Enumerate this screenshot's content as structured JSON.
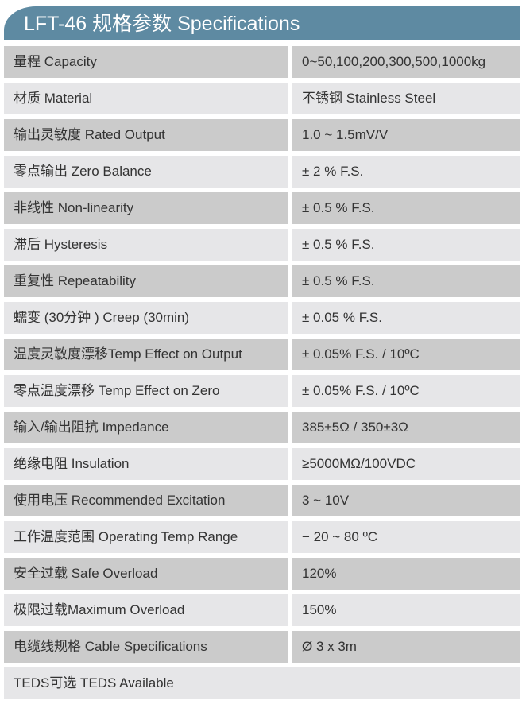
{
  "title": "LFT-46 规格参数 Specifications",
  "rows": [
    {
      "label": "量程 Capacity",
      "value": "0~50,100,200,300,500,1000kg"
    },
    {
      "label": "材质 Material",
      "value": "不锈钢 Stainless Steel"
    },
    {
      "label": "输出灵敏度 Rated Output",
      "value": "1.0 ~ 1.5mV/V"
    },
    {
      "label": "零点输出  Zero Balance",
      "value": "± 2 % F.S."
    },
    {
      "label": "非线性 Non-linearity",
      "value": "± 0.5 % F.S."
    },
    {
      "label": "滞后 Hysteresis",
      "value": "± 0.5 % F.S."
    },
    {
      "label": "重复性 Repeatability",
      "value": "± 0.5 % F.S."
    },
    {
      "label": "蠕变 (30分钟 ) Creep (30min)",
      "value": "± 0.05 % F.S."
    },
    {
      "label": "温度灵敏度漂移Temp Effect on Output",
      "value": "± 0.05% F.S. / 10ºC"
    },
    {
      "label": "零点温度漂移 Temp Effect on Zero",
      "value": "± 0.05% F.S. / 10ºC"
    },
    {
      "label": "输入/输出阻抗 Impedance",
      "value": "385±5Ω / 350±3Ω"
    },
    {
      "label": "绝缘电阻  Insulation",
      "value": "≥5000MΩ/100VDC"
    },
    {
      "label": "使用电压 Recommended Excitation",
      "value": "3 ~ 10V"
    },
    {
      "label": "工作温度范围 Operating Temp  Range",
      "value": "− 20 ~ 80 ºC"
    },
    {
      "label": "安全过载 Safe Overload",
      "value": "120%"
    },
    {
      "label": "极限过载Maximum Overload",
      "value": "150%"
    },
    {
      "label": "电缆线规格 Cable Specifications",
      "value": "Ø 3 x 3m"
    }
  ],
  "footer_row": "TEDS可选 TEDS Available"
}
